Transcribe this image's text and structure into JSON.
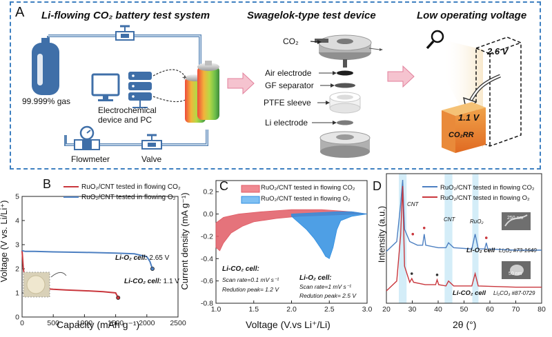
{
  "panel_a": {
    "letter": "A",
    "sections": {
      "system": "Li-flowing CO₂ battery test system",
      "device": "Swagelok-type test device",
      "voltage": "Low operating voltage"
    },
    "gas_label": "99.999% gas",
    "pc_label_1": "Electrochemical",
    "pc_label_2": "device and PC",
    "flowmeter_label": "Flowmeter",
    "valve_label": "Valve",
    "device_parts": {
      "co2": "CO₂",
      "air_electrode": "Air electrode",
      "gf_separator": "GF separator",
      "ptfe_sleeve": "PTFE sleeve",
      "li_electrode": "Li electrode"
    },
    "voltage_high": "2.6 V",
    "voltage_low": "1.1 V",
    "co2rr": "CO₂RR"
  },
  "panel_b": {
    "letter": "B",
    "ylabel": "Voltage (V vs. Li/Li⁺)",
    "xlabel": "Capacity (mAh g⁻¹)",
    "legend": [
      "RuO₂/CNT tested in flowing CO₂",
      "RuO₂/CNT tested in flowing O₂"
    ],
    "annot_o2_italic": "Li-O₂ cell:",
    "annot_o2_value": " 2.65 V",
    "annot_co2_italic": "Li-CO₂ cell:",
    "annot_co2_value": " 1.1 V"
  },
  "panel_c": {
    "letter": "C",
    "ylabel": "Current density (mA g⁻¹)",
    "xlabel": "Voltage (V.vs Li⁺/Li)",
    "legend": [
      "RuO₂/CNT tested in flowing CO₂",
      "RuO₂/CNT tested in flowing O₂"
    ],
    "co2_title": "Li-CO₂ cell:",
    "co2_rate": "Scan rate=0.1 mV s⁻¹",
    "co2_peak": "Redution peak= 1.2 V",
    "o2_title": "Li-O₂ cell:",
    "o2_rate": "Scan rate=1 mV s⁻¹",
    "o2_peak": "Redution peak= 2.5 V"
  },
  "panel_d": {
    "letter": "D",
    "ylabel": "Intensity (a.u.)",
    "xlabel": "2θ (°)",
    "legend": [
      "RuO₂/CNT tested in flowing CO₂",
      "RuO₂/CNT tested in flowing O₂"
    ],
    "peak_cnt_1": "CNT",
    "peak_cnt_2": "CNT",
    "peak_ruo2": "RuO₂",
    "o2_cell": "Li-O₂ cell",
    "o2_ref": "Li₂O₂ #73-1640",
    "co2_cell": "Li-CO₂ cell",
    "co2_ref": "Li₂CO₃ #87-0729",
    "scale_top": "250 nm",
    "scale_bottom": "50 nm"
  },
  "chart_data": [
    {
      "panel": "B",
      "type": "line",
      "xlabel": "Capacity (mAh g⁻¹)",
      "ylabel": "Voltage (V vs. Li/Li⁺)",
      "xlim": [
        0,
        2500
      ],
      "ylim": [
        0,
        5
      ],
      "xticks": [
        0,
        500,
        1000,
        1500,
        2000,
        2500
      ],
      "yticks": [
        0,
        1,
        2,
        3,
        4,
        5
      ],
      "series": [
        {
          "name": "RuO₂/CNT tested in flowing CO₂",
          "color": "#c9363c",
          "x": [
            0,
            20,
            50,
            100,
            150,
            200,
            300,
            400,
            500,
            700,
            900,
            1100,
            1300,
            1500,
            1540
          ],
          "y": [
            2.75,
            2.0,
            1.55,
            1.35,
            1.28,
            1.24,
            1.2,
            1.17,
            1.15,
            1.12,
            1.1,
            1.08,
            1.05,
            1.0,
            0.8
          ]
        },
        {
          "name": "RuO₂/CNT tested in flowing O₂",
          "color": "#4c7fc1",
          "x": [
            0,
            50,
            200,
            500,
            1000,
            1500,
            1800,
            2000,
            2050,
            2090
          ],
          "y": [
            2.75,
            2.72,
            2.72,
            2.7,
            2.68,
            2.65,
            2.62,
            2.5,
            2.3,
            2.0
          ]
        }
      ]
    },
    {
      "panel": "C",
      "type": "area",
      "xlabel": "Voltage (V.vs Li⁺/Li)",
      "ylabel": "Current density (mA g⁻¹)",
      "xlim": [
        1.0,
        3.0
      ],
      "ylim": [
        -0.8,
        0.3
      ],
      "xticks": [
        1.0,
        1.5,
        2.0,
        2.5,
        3.0
      ],
      "yticks": [
        -0.8,
        -0.6,
        -0.4,
        -0.2,
        0.0,
        0.2
      ],
      "series": [
        {
          "name": "RuO₂/CNT tested in flowing CO₂",
          "color": "#e05a64",
          "upper_x": [
            1.0,
            1.1,
            1.3,
            1.6,
            2.0,
            2.4,
            2.8,
            3.0
          ],
          "upper_y": [
            -0.08,
            -0.03,
            0.0,
            0.02,
            0.04,
            0.04,
            0.02,
            0.0
          ],
          "lower_x": [
            1.0,
            1.05,
            1.1,
            1.2,
            1.35,
            1.5,
            1.8,
            2.1,
            2.5,
            2.9,
            3.0
          ],
          "lower_y": [
            -0.3,
            -0.33,
            -0.26,
            -0.17,
            -0.11,
            -0.07,
            -0.04,
            -0.02,
            -0.01,
            0.0,
            0.0
          ]
        },
        {
          "name": "RuO₂/CNT tested in flowing O₂",
          "color": "#2f8ee0",
          "upper_x": [
            2.0,
            2.3,
            2.6,
            2.8,
            3.0
          ],
          "upper_y": [
            0.0,
            0.01,
            0.02,
            0.02,
            0.0
          ],
          "lower_x": [
            2.0,
            2.1,
            2.2,
            2.3,
            2.4,
            2.45,
            2.5,
            2.55,
            2.6,
            2.65,
            2.8,
            3.0
          ],
          "lower_y": [
            -0.02,
            -0.08,
            -0.14,
            -0.22,
            -0.32,
            -0.38,
            -0.4,
            -0.3,
            -0.14,
            -0.06,
            -0.02,
            0.0
          ]
        }
      ]
    },
    {
      "panel": "D",
      "type": "line",
      "xlabel": "2θ (°)",
      "ylabel": "Intensity (a.u.)",
      "xlim": [
        20,
        80
      ],
      "xticks": [
        20,
        30,
        40,
        50,
        60,
        70,
        80
      ],
      "series": [
        {
          "name": "RuO₂/CNT tested in flowing CO₂",
          "color": "#4c7fc1",
          "x": [
            20,
            24,
            25.5,
            26.3,
            27,
            29,
            32,
            34,
            34.6,
            35.2,
            40,
            43,
            44,
            46,
            53,
            54.3,
            55.5,
            58,
            58.6,
            59.2,
            70,
            80
          ],
          "y": [
            0.42,
            0.5,
            0.8,
            1.0,
            0.6,
            0.5,
            0.47,
            0.47,
            0.56,
            0.47,
            0.45,
            0.45,
            0.49,
            0.45,
            0.44,
            0.56,
            0.44,
            0.44,
            0.49,
            0.44,
            0.43,
            0.43
          ]
        },
        {
          "name": "RuO₂/CNT tested in flowing O₂",
          "color": "#c9363c",
          "x": [
            20,
            24,
            25.5,
            26.3,
            27,
            29,
            29.8,
            30.5,
            35,
            39,
            39.6,
            40.2,
            43,
            44,
            46,
            53,
            54.3,
            55.5,
            70,
            80
          ],
          "y": [
            0.1,
            0.18,
            0.55,
            0.95,
            0.3,
            0.17,
            0.2,
            0.17,
            0.15,
            0.15,
            0.19,
            0.15,
            0.14,
            0.18,
            0.14,
            0.14,
            0.24,
            0.14,
            0.13,
            0.13
          ]
        }
      ]
    }
  ]
}
